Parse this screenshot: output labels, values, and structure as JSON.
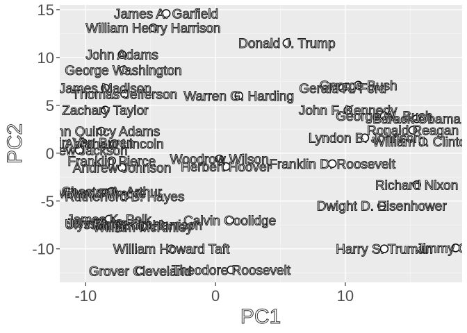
{
  "chart_data": {
    "type": "scatter",
    "xlabel": "PC1",
    "ylabel": "PC2",
    "xlim": [
      -12,
      19
    ],
    "ylim": [
      -13.5,
      15.5
    ],
    "x_ticks": [
      -10,
      0,
      10
    ],
    "y_ticks": [
      15,
      10,
      5,
      0,
      -5,
      -10
    ],
    "grid": true,
    "legend": "none",
    "points": [
      {
        "label": "James A. Garfield",
        "x": -3.8,
        "y": 14.6
      },
      {
        "label": "William Henry Harrison",
        "x": -4.8,
        "y": 13.1
      },
      {
        "label": "Donald J. Trump",
        "x": 5.5,
        "y": 11.5
      },
      {
        "label": "John Adams",
        "x": -7.2,
        "y": 10.3
      },
      {
        "label": "George Washington",
        "x": -7.1,
        "y": 8.7
      },
      {
        "label": "George Bush",
        "x": 11.0,
        "y": 7.1
      },
      {
        "label": "James Madison",
        "x": -8.5,
        "y": 6.8
      },
      {
        "label": "Gerald R. Ford",
        "x": 9.8,
        "y": 6.8
      },
      {
        "label": "Thomas Jefferson",
        "x": -7.0,
        "y": 6.2
      },
      {
        "label": "Warren G. Harding",
        "x": 1.8,
        "y": 6.0
      },
      {
        "label": "Zachary Taylor",
        "x": -8.5,
        "y": 4.5
      },
      {
        "label": "John F. Kennedy",
        "x": 10.2,
        "y": 4.5
      },
      {
        "label": "George W. Bush",
        "x": 13.0,
        "y": 3.9
      },
      {
        "label": "Barack Obama",
        "x": 15.5,
        "y": 3.6
      },
      {
        "label": "Ronald Reagan",
        "x": 15.2,
        "y": 2.4
      },
      {
        "label": "John Quincy Adams",
        "x": -8.8,
        "y": 2.3
      },
      {
        "label": "Lyndon B. Johnson",
        "x": 11.5,
        "y": 1.6
      },
      {
        "label": "William J. Clinton",
        "x": 16.0,
        "y": 1.2
      },
      {
        "label": "Martin Van Buren",
        "x": -10.2,
        "y": 1.1
      },
      {
        "label": "Abraham Lincoln",
        "x": -7.8,
        "y": 1.0
      },
      {
        "label": "Andrew Jackson",
        "x": -10.5,
        "y": 0.3
      },
      {
        "label": "Franklin Pierce",
        "x": -8.0,
        "y": -0.8
      },
      {
        "label": "Woodrow Wilson",
        "x": 0.3,
        "y": -0.6
      },
      {
        "label": "Franklin D. Roosevelt",
        "x": 9.0,
        "y": -1.1
      },
      {
        "label": "Herbert Hoover",
        "x": 0.8,
        "y": -1.4
      },
      {
        "label": "Andrew Johnson",
        "x": -7.2,
        "y": -1.5
      },
      {
        "label": "Richard Nixon",
        "x": 15.5,
        "y": -3.3
      },
      {
        "label": "Chester A. Arthur",
        "x": -8.0,
        "y": -4.0
      },
      {
        "label": "Millard Fillmore",
        "x": -8.8,
        "y": -4.2
      },
      {
        "label": "Rutherford B. Hayes",
        "x": -7.0,
        "y": -4.5
      },
      {
        "label": "Dwight D. Eisenhower",
        "x": 12.8,
        "y": -5.5
      },
      {
        "label": "James K. Polk",
        "x": -8.2,
        "y": -6.9
      },
      {
        "label": "Calvin Coolidge",
        "x": 1.1,
        "y": -7.0
      },
      {
        "label": "John Tyler",
        "x": -9.2,
        "y": -7.3
      },
      {
        "label": "Ulysses S. Grant",
        "x": -7.8,
        "y": -7.4
      },
      {
        "label": "Benjamin Harrison",
        "x": -5.2,
        "y": -7.5
      },
      {
        "label": "William McKinley",
        "x": -5.6,
        "y": -7.7
      },
      {
        "label": "William Howard Taft",
        "x": -3.4,
        "y": -10.0
      },
      {
        "label": "Harry S. Truman",
        "x": 13.0,
        "y": -10.0
      },
      {
        "label": "Jimmy Carter",
        "x": 18.5,
        "y": -9.9
      },
      {
        "label": "Grover Cleveland",
        "x": -5.8,
        "y": -12.3
      },
      {
        "label": "Theodore Roosevelt",
        "x": 1.2,
        "y": -12.2
      }
    ]
  }
}
